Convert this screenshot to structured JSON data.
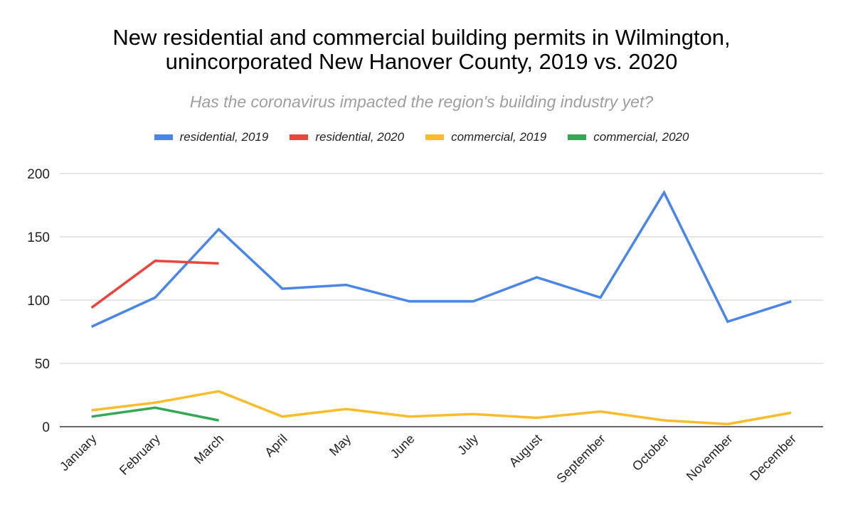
{
  "chart_data": {
    "type": "line",
    "title": "New residential and commercial building permits in Wilmington, unincorporated New Hanover County, 2019 vs. 2020",
    "title_lines": [
      "New residential and commercial building permits in Wilmington,",
      "unincorporated New Hanover County, 2019 vs. 2020"
    ],
    "subtitle": "Has the coronavirus impacted the region's building industry yet?",
    "xlabel": "",
    "ylabel": "",
    "ylim": [
      0,
      200
    ],
    "yticks": [
      0,
      50,
      100,
      150,
      200
    ],
    "grid": true,
    "legend_position": "top",
    "categories": [
      "January",
      "February",
      "March",
      "April",
      "May",
      "June",
      "July",
      "August",
      "September",
      "October",
      "November",
      "December"
    ],
    "series": [
      {
        "name": "residential, 2019",
        "color": "#4a86e8",
        "values": [
          79,
          102,
          156,
          109,
          112,
          99,
          99,
          118,
          102,
          185,
          83,
          99
        ]
      },
      {
        "name": "residential, 2020",
        "color": "#e8453c",
        "values": [
          94,
          131,
          129,
          null,
          null,
          null,
          null,
          null,
          null,
          null,
          null,
          null
        ]
      },
      {
        "name": "commercial, 2019",
        "color": "#fbbc2c",
        "values": [
          13,
          19,
          28,
          8,
          14,
          8,
          10,
          7,
          12,
          5,
          2,
          11
        ]
      },
      {
        "name": "commercial, 2020",
        "color": "#34a853",
        "values": [
          8,
          15,
          5,
          null,
          null,
          null,
          null,
          null,
          null,
          null,
          null,
          null
        ]
      }
    ]
  }
}
